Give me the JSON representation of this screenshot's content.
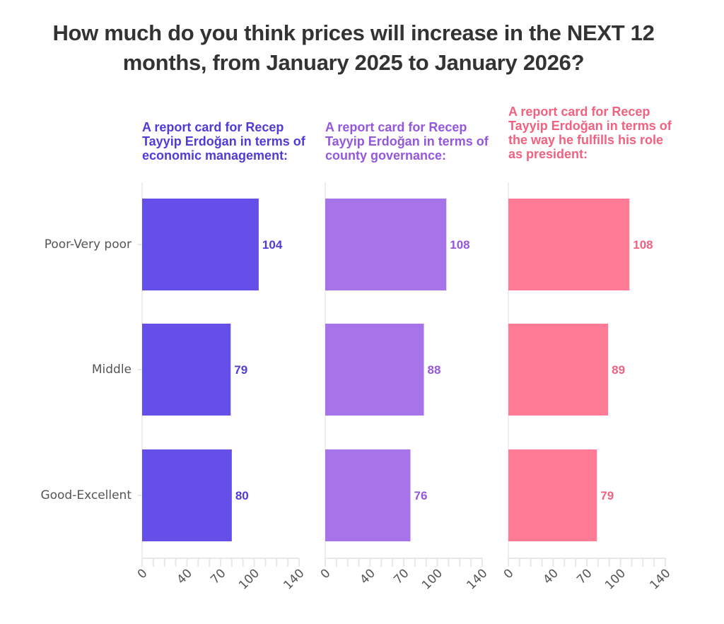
{
  "chart_data": {
    "type": "bar",
    "orientation": "horizontal",
    "title": "How much do you think prices will increase in the NEXT 12 months, from January 2025 to January 2026?",
    "title_lines": [
      "How much do you think prices will increase in the NEXT 12",
      "months, from January 2025 to January 2026?"
    ],
    "categories": [
      "Poor-Very poor",
      "Middle",
      "Good-Excellent"
    ],
    "xlim": [
      0,
      140
    ],
    "x_ticks": [
      0,
      10,
      20,
      30,
      40,
      50,
      60,
      70,
      80,
      90,
      100,
      110,
      120,
      130,
      140
    ],
    "x_tick_labels": [
      {
        "value": 0,
        "label": "0"
      },
      {
        "value": 40,
        "label": "40"
      },
      {
        "value": 70,
        "label": "70"
      },
      {
        "value": 100,
        "label": "100"
      },
      {
        "value": 140,
        "label": "140"
      }
    ],
    "grid": false,
    "series": [
      {
        "name": "A report card for Recep Tayyip Erdoğan in terms of economic management:",
        "title_lines": [
          "A report card for Recep",
          "Tayyip Erdoğan in terms of",
          "economic management:"
        ],
        "color": "#6450E8",
        "label_color": "#4F3CD6",
        "values": [
          104,
          79,
          80
        ]
      },
      {
        "name": "A report card for Recep Tayyip Erdoğan in terms of county governance:",
        "title_lines": [
          "A report card for Recep",
          "Tayyip Erdoğan in terms of",
          "county governance:"
        ],
        "color": "#A674E8",
        "label_color": "#9457DD",
        "values": [
          108,
          88,
          76
        ]
      },
      {
        "name": "A report card for Recep Tayyip Erdoğan in terms of the way he fulfills his role as president:",
        "title_lines": [
          "A report card for Recep",
          "Tayyip Erdoğan in terms of",
          "the way he fulfills his role",
          "as president:"
        ],
        "color": "#FF7B95",
        "label_color": "#F0627F",
        "values": [
          108,
          89,
          79
        ]
      }
    ]
  }
}
